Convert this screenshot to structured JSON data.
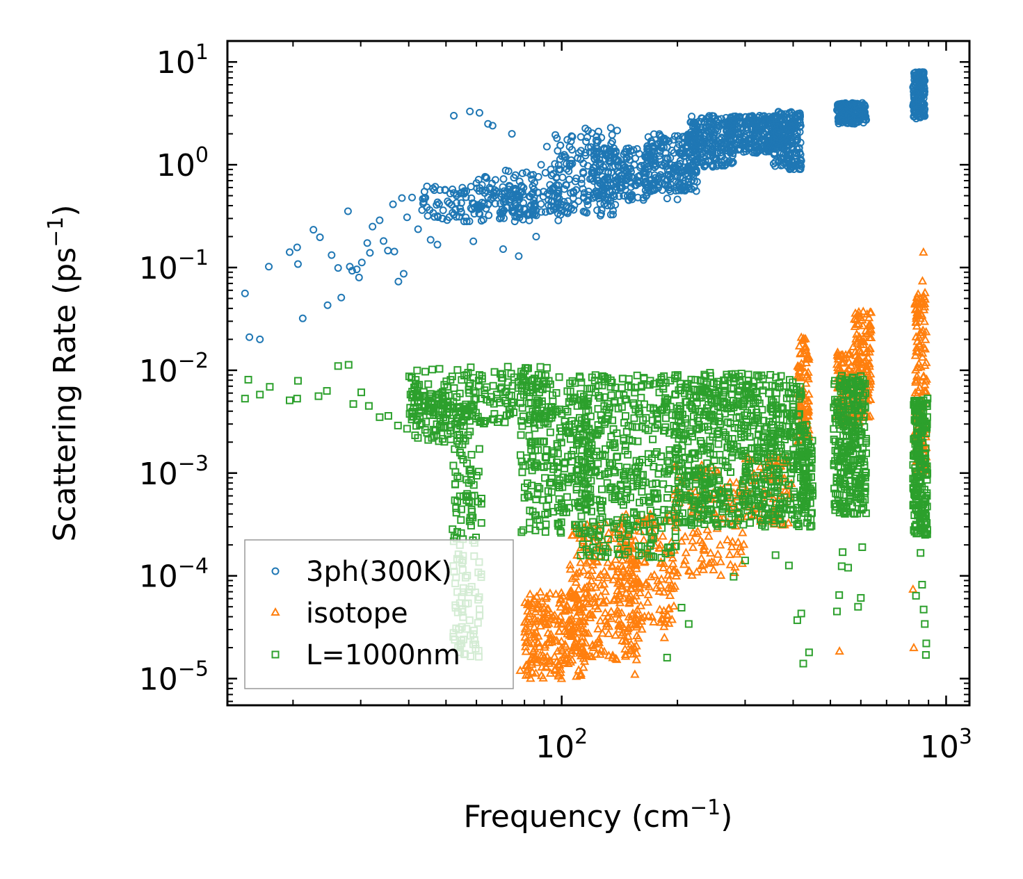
{
  "chart_data": {
    "type": "scatter",
    "xscale": "log",
    "yscale": "log",
    "xlim": [
      13.5,
      1150
    ],
    "ylim": [
      5.5e-06,
      16
    ],
    "xlabel": "Frequency (cm",
    "xlabel_sup": "−1",
    "xlabel_end": ")",
    "ylabel": "Scattering Rate (ps",
    "ylabel_sup": "−1",
    "ylabel_end": ")",
    "x_ticks": [
      {
        "value": 100,
        "base": "10",
        "exp": "2"
      },
      {
        "value": 1000,
        "base": "10",
        "exp": "3"
      }
    ],
    "y_ticks": [
      {
        "value": 10,
        "base": "10",
        "exp": "1"
      },
      {
        "value": 1,
        "base": "10",
        "exp": "0"
      },
      {
        "value": 0.1,
        "base": "10",
        "exp": "−1"
      },
      {
        "value": 0.01,
        "base": "10",
        "exp": "−2"
      },
      {
        "value": 0.001,
        "base": "10",
        "exp": "−3"
      },
      {
        "value": 0.0001,
        "base": "10",
        "exp": "−4"
      },
      {
        "value": 1e-05,
        "base": "10",
        "exp": "−5"
      }
    ],
    "legend_position": "lower-left",
    "series": [
      {
        "name": "3ph(300K)",
        "marker": "circle",
        "color": "#1f77b4",
        "points": [
          [
            15,
            0.056
          ],
          [
            15.4,
            0.021
          ],
          [
            16.4,
            0.02
          ],
          [
            17.3,
            0.102
          ],
          [
            19.6,
            0.141
          ],
          [
            20.5,
            0.157
          ],
          [
            20.6,
            0.108
          ],
          [
            21.2,
            0.032
          ],
          [
            22.6,
            0.233
          ],
          [
            23.5,
            0.197
          ],
          [
            24.6,
            0.043
          ],
          [
            25.2,
            0.132
          ],
          [
            26.2,
            0.099
          ],
          [
            26.7,
            0.051
          ],
          [
            27.8,
            0.353
          ],
          [
            28.1,
            0.102
          ],
          [
            28.5,
            0.093
          ],
          [
            29.3,
            0.096
          ],
          [
            29.7,
            0.08
          ],
          [
            30.2,
            0.112
          ],
          [
            31.2,
            0.173
          ],
          [
            31.7,
            0.139
          ],
          [
            32.2,
            0.25
          ],
          [
            33.6,
            0.288
          ],
          [
            34.4,
            0.181
          ],
          [
            35.3,
            0.146
          ],
          [
            36.4,
            0.412
          ],
          [
            36.7,
            0.143
          ],
          [
            37.6,
            0.073
          ],
          [
            38.4,
            0.474
          ],
          [
            38.8,
            0.087
          ],
          [
            39.6,
            0.308
          ],
          [
            40.8,
            0.48
          ],
          [
            42.3,
            0.236
          ],
          [
            43.6,
            0.42
          ],
          [
            45.6,
            0.186
          ],
          [
            47.5,
            0.167
          ],
          [
            52.4,
            3.0
          ],
          [
            57.7,
            3.3
          ],
          [
            58.9,
            0.18
          ],
          [
            61.1,
            3.2
          ],
          [
            64.3,
            2.5
          ],
          [
            66.1,
            2.4
          ],
          [
            70.4,
            0.151
          ],
          [
            74.2,
            2.0
          ],
          [
            77.3,
            0.129
          ],
          [
            85.8,
            0.2
          ],
          [
            88.4,
            1.0
          ],
          [
            91.5,
            1.5
          ],
          [
            93.7,
            0.9
          ],
          [
            188.1,
            0.47
          ],
          [
            200.0,
            0.46
          ],
          [
            197.0,
            1.9
          ]
        ],
        "bands": [
          {
            "x": [
              43,
              100
            ],
            "y": [
              0.28,
              0.62
            ],
            "n": 180
          },
          {
            "x": [
              58,
              110
            ],
            "y": [
              0.32,
              0.9
            ],
            "n": 90
          },
          {
            "x": [
              95,
              140
            ],
            "y": [
              0.32,
              2.3
            ],
            "n": 150
          },
          {
            "x": [
              120,
              170
            ],
            "y": [
              0.45,
              1.5
            ],
            "n": 180
          },
          {
            "x": [
              165,
              225
            ],
            "y": [
              0.55,
              2.0
            ],
            "n": 220
          },
          {
            "x": [
              215,
              280
            ],
            "y": [
              0.95,
              3.0
            ],
            "n": 220
          },
          {
            "x": [
              270,
              360
            ],
            "y": [
              1.3,
              3.0
            ],
            "n": 240
          },
          {
            "x": [
              355,
              420
            ],
            "y": [
              0.9,
              3.3
            ],
            "n": 200
          },
          {
            "x": [
              520,
              620
            ],
            "y": [
              2.5,
              4.0
            ],
            "n": 170
          },
          {
            "x": [
              820,
              880
            ],
            "y": [
              2.8,
              8.0
            ],
            "n": 150
          }
        ]
      },
      {
        "name": "isotope",
        "marker": "triangle",
        "color": "#ff7f0e",
        "points": [
          [
            78,
            1.2e-05
          ],
          [
            82,
            1.1e-05
          ],
          [
            89,
            1.5e-05
          ],
          [
            96,
            1.2e-05
          ],
          [
            104,
            1.4e-05
          ],
          [
            155,
            1.1e-05
          ],
          [
            185,
            2.5e-05
          ],
          [
            188,
            4.2e-05
          ],
          [
            528,
            1.85e-05
          ],
          [
            820,
            7.4e-05
          ],
          [
            824,
            2e-05
          ],
          [
            868,
            0.074
          ],
          [
            873,
            0.141
          ]
        ],
        "bands": [
          {
            "x": [
              80,
              115
            ],
            "y": [
              1e-05,
              7e-05
            ],
            "n": 220
          },
          {
            "x": [
              105,
              160
            ],
            "y": [
              1.5e-05,
              0.00033
            ],
            "n": 260
          },
          {
            "x": [
              140,
              200
            ],
            "y": [
              3e-05,
              0.0004
            ],
            "n": 150
          },
          {
            "x": [
              195,
              300
            ],
            "y": [
              0.0001,
              0.0012
            ],
            "n": 120
          },
          {
            "x": [
              300,
              400
            ],
            "y": [
              0.0003,
              0.0015
            ],
            "n": 80
          },
          {
            "x": [
              410,
              440
            ],
            "y": [
              0.002,
              0.021
            ],
            "n": 90
          },
          {
            "x": [
              520,
              570
            ],
            "y": [
              0.003,
              0.015
            ],
            "n": 90
          },
          {
            "x": [
              570,
              640
            ],
            "y": [
              0.003,
              0.038
            ],
            "n": 130
          },
          {
            "x": [
              830,
              890
            ],
            "y": [
              0.001,
              0.058
            ],
            "n": 140
          }
        ]
      },
      {
        "name": "L=1000nm",
        "marker": "square",
        "color": "#2ca02c",
        "points": [
          [
            15,
            0.0053
          ],
          [
            15.3,
            0.0081
          ],
          [
            16.4,
            0.0058
          ],
          [
            17.4,
            0.0069
          ],
          [
            19.6,
            0.0051
          ],
          [
            20.5,
            0.0053
          ],
          [
            20.6,
            0.0079
          ],
          [
            23.3,
            0.0056
          ],
          [
            24.5,
            0.0063
          ],
          [
            26.2,
            0.011
          ],
          [
            27.9,
            0.0113
          ],
          [
            28.7,
            0.0047
          ],
          [
            30.1,
            0.0061
          ],
          [
            31.5,
            0.0045
          ],
          [
            33.6,
            0.0035
          ],
          [
            35.4,
            0.0036
          ],
          [
            37.5,
            0.0029
          ],
          [
            39.6,
            0.0027
          ],
          [
            188,
            1.6e-05
          ],
          [
            205,
            4.9e-05
          ],
          [
            214,
            3.4e-05
          ],
          [
            280,
            9.8e-05
          ],
          [
            300,
            0.000141
          ],
          [
            360,
            0.000159
          ],
          [
            390,
            0.000126
          ],
          [
            410,
            3.7e-05
          ],
          [
            420,
            4.3e-05
          ],
          [
            425,
            1.4e-05
          ],
          [
            440,
            1.8e-05
          ],
          [
            520,
            4.5e-05
          ],
          [
            527,
            6.5e-05
          ],
          [
            535,
            0.000124
          ],
          [
            538,
            0.00017
          ],
          [
            556,
            0.00012
          ],
          [
            590,
            5e-05
          ],
          [
            600,
            6.1e-05
          ],
          [
            605,
            0.00019
          ],
          [
            835,
            6.4e-05
          ],
          [
            858,
            0.000167
          ],
          [
            866,
            8.2e-05
          ],
          [
            874,
            4.7e-05
          ],
          [
            880,
            3.4e-05
          ],
          [
            886,
            1.7e-05
          ],
          [
            888,
            2.2e-05
          ]
        ],
        "bands": [
          {
            "x": [
              40,
              58
            ],
            "y": [
              0.002,
              0.006
            ],
            "n": 90
          },
          {
            "x": [
              52,
              62
            ],
            "y": [
              1.5e-05,
              0.002
            ],
            "n": 130
          },
          {
            "x": [
              40,
              95
            ],
            "y": [
              0.003,
              0.011
            ],
            "n": 220
          },
          {
            "x": [
              78,
              120
            ],
            "y": [
              0.00025,
              0.009
            ],
            "n": 260
          },
          {
            "x": [
              110,
              200
            ],
            "y": [
              0.00015,
              0.009
            ],
            "n": 420
          },
          {
            "x": [
              200,
              300
            ],
            "y": [
              0.0003,
              0.0095
            ],
            "n": 380
          },
          {
            "x": [
              300,
              420
            ],
            "y": [
              0.0003,
              0.0095
            ],
            "n": 330
          },
          {
            "x": [
              420,
              450
            ],
            "y": [
              0.0003,
              0.003
            ],
            "n": 90
          },
          {
            "x": [
              510,
              620
            ],
            "y": [
              0.0004,
              0.009
            ],
            "n": 300
          },
          {
            "x": [
              820,
              895
            ],
            "y": [
              0.00025,
              0.0055
            ],
            "n": 220
          }
        ]
      }
    ]
  }
}
